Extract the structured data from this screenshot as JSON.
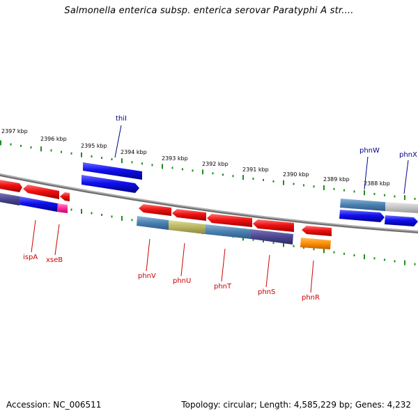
{
  "title": "Salmonella enterica subsp. enterica serovar Paratyphi A str....",
  "footer": {
    "accession": "Accession: NC_006511",
    "stats": "Topology: circular; Length: 4,585,229 bp; Genes: 4,232"
  },
  "colors": {
    "forward_gene": "#1010ee",
    "reverse_gene": "#ee1111",
    "forward_label": "#00008b",
    "reverse_label": "#cc0000",
    "backbone": "#8c8c8c",
    "tick": "#1e8c1e"
  },
  "kbp_labels": [
    "2397 kbp",
    "2396 kbp",
    "2395 kbp",
    "2394 kbp",
    "2393 kbp",
    "2392 kbp",
    "2391 kbp",
    "2390 kbp",
    "2389 kbp",
    "2388 kbp"
  ],
  "gene_labels": [
    {
      "name": "thiI",
      "strand": "forward"
    },
    {
      "name": "phnW",
      "strand": "forward"
    },
    {
      "name": "phnX",
      "strand": "forward"
    },
    {
      "name": "ispA",
      "strand": "reverse"
    },
    {
      "name": "xseB",
      "strand": "reverse"
    },
    {
      "name": "phnV",
      "strand": "reverse"
    },
    {
      "name": "phnU",
      "strand": "reverse"
    },
    {
      "name": "phnT",
      "strand": "reverse"
    },
    {
      "name": "phnS",
      "strand": "reverse"
    },
    {
      "name": "phnR",
      "strand": "reverse"
    }
  ]
}
